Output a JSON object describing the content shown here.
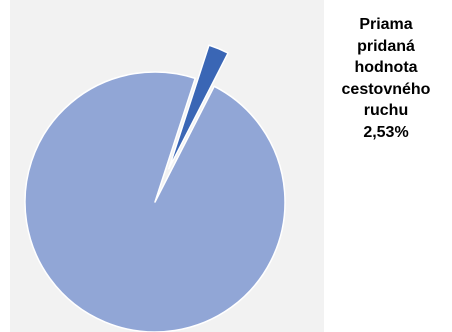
{
  "chart_data": {
    "type": "pie",
    "slices": [
      {
        "label": "Priama pridaná hodnota cestovného ruchu",
        "value": 2.53,
        "color": "#3a66b5",
        "exploded": true
      },
      {
        "label": "",
        "value": 97.47,
        "color": "#91a6d6",
        "exploded": false
      }
    ],
    "data_label": {
      "lines": [
        "Priama",
        "pridaná",
        "hodnota",
        "cestovného",
        "ruchu",
        "2,53%"
      ]
    },
    "legend": "none",
    "plot_background": "#f2f2f2",
    "slice_border_color": "#ffffff"
  }
}
